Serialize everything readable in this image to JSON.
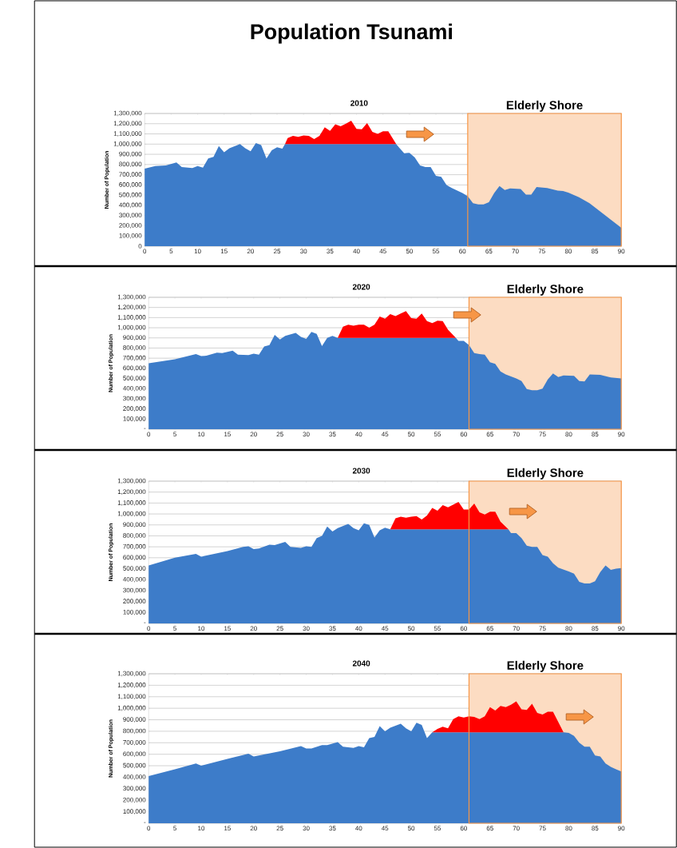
{
  "chart_data": [
    {
      "type": "area",
      "stacked": true,
      "title": "Population Tsunami",
      "subtitle": "2010",
      "ylabel": "Number of Population",
      "grid": "y",
      "x": [
        0,
        2,
        4,
        6,
        7,
        9,
        10,
        11,
        12,
        13,
        14,
        15,
        16,
        18,
        19,
        20,
        21,
        22,
        23,
        24,
        25,
        26,
        26.5,
        27,
        28,
        29,
        30,
        31,
        32,
        33,
        34,
        35,
        36,
        37,
        38,
        39,
        40,
        41,
        42,
        43,
        44,
        45,
        46,
        47.5,
        48,
        49,
        50,
        51,
        52,
        53,
        54,
        55,
        56,
        57,
        58,
        60,
        61,
        62,
        63,
        64,
        65,
        66,
        67,
        68,
        69,
        71,
        72,
        73,
        74,
        76,
        78,
        79,
        80,
        82,
        84,
        86,
        88,
        90
      ],
      "xlim": [
        0,
        90
      ],
      "xticks": [
        0,
        5,
        10,
        15,
        20,
        25,
        30,
        35,
        40,
        45,
        50,
        55,
        60,
        65,
        70,
        75,
        80,
        85,
        90
      ],
      "ylim": [
        0,
        1300000
      ],
      "yticks": [
        0,
        {
          "value": 100000,
          "label": "100,000"
        },
        {
          "value": 200000,
          "label": "200,000"
        },
        {
          "value": 300000,
          "label": "300,000"
        },
        {
          "value": 400000,
          "label": "400,000"
        },
        {
          "value": 500000,
          "label": "500,000"
        },
        {
          "value": 600000,
          "label": "600,000"
        },
        {
          "value": 700000,
          "label": "700,000"
        },
        {
          "value": 800000,
          "label": "800,000"
        },
        {
          "value": 900000,
          "label": "900,000"
        },
        {
          "value": 1000000,
          "label": "1,000,000"
        },
        {
          "value": 1100000,
          "label": "1,100,000"
        },
        {
          "value": 1200000,
          "label": "1,200,000"
        },
        {
          "value": 1300000,
          "label": "1,300,000"
        }
      ],
      "bands": [
        {
          "axis": "x",
          "from": 61,
          "to": 90,
          "label": "Elderly Shore",
          "color": "#fcdcc2"
        }
      ],
      "series": [
        {
          "color": "#3d7cc9",
          "values": [
            760000,
            785000,
            790000,
            820000,
            775000,
            765000,
            785000,
            770000,
            860000,
            875000,
            980000,
            920000,
            960000,
            1000000,
            960000,
            930000,
            1010000,
            990000,
            860000,
            940000,
            970000,
            955000,
            1000000,
            1000000,
            1000000,
            1000000,
            1000000,
            1000000,
            1000000,
            1000000,
            1000000,
            1000000,
            1000000,
            1000000,
            1000000,
            1000000,
            1000000,
            1000000,
            1000000,
            1000000,
            1000000,
            1000000,
            1000000,
            1000000,
            970000,
            910000,
            915000,
            870000,
            790000,
            775000,
            775000,
            690000,
            680000,
            600000,
            570000,
            520000,
            490000,
            420000,
            410000,
            410000,
            430000,
            520000,
            590000,
            550000,
            565000,
            560000,
            505000,
            505000,
            580000,
            570000,
            545000,
            540000,
            525000,
            480000,
            420000,
            340000,
            260000,
            180000
          ]
        },
        {
          "color": "#ff0000",
          "values": [
            null,
            null,
            null,
            null,
            null,
            null,
            null,
            null,
            null,
            null,
            null,
            null,
            null,
            null,
            null,
            null,
            null,
            null,
            null,
            null,
            null,
            null,
            0,
            60000,
            80000,
            70000,
            85000,
            80000,
            50000,
            80000,
            165000,
            130000,
            195000,
            175000,
            200000,
            230000,
            150000,
            145000,
            205000,
            120000,
            100000,
            125000,
            125000,
            0,
            null,
            null,
            null,
            null,
            null,
            null,
            null,
            null,
            null,
            null,
            null,
            null,
            null,
            null,
            null,
            null,
            null,
            null,
            null,
            null,
            null,
            null,
            null,
            null,
            null,
            null,
            null,
            null,
            null,
            null,
            null,
            null,
            null,
            null
          ]
        }
      ]
    },
    {
      "type": "area",
      "stacked": true,
      "subtitle": "2020",
      "ylabel": "Number of Population",
      "grid": "y",
      "x": [
        0,
        5,
        9,
        10,
        11,
        13,
        14,
        16,
        17,
        19,
        20,
        21,
        22,
        23,
        24,
        25,
        26,
        28,
        29,
        30,
        31,
        32,
        33,
        34,
        35,
        36,
        37,
        38,
        39,
        40,
        41,
        42,
        43,
        44,
        45,
        46,
        47,
        48,
        49,
        50,
        51,
        52,
        53,
        54,
        55,
        56,
        57,
        58.5,
        59,
        60,
        61,
        62,
        63,
        64,
        65,
        66,
        67,
        68,
        70,
        71,
        72,
        73,
        74,
        75,
        76,
        77,
        78,
        79,
        81,
        82,
        83,
        84,
        86,
        88,
        90
      ],
      "xlim": [
        0,
        90
      ],
      "xticks": [
        0,
        5,
        10,
        15,
        20,
        25,
        30,
        35,
        40,
        45,
        50,
        55,
        60,
        65,
        70,
        75,
        80,
        85,
        90
      ],
      "ylim": [
        0,
        1300000
      ],
      "yticks": [
        {
          "value": 0,
          "label": "-"
        },
        {
          "value": 100000,
          "label": "100,000"
        },
        {
          "value": 200000,
          "label": "200,000"
        },
        {
          "value": 300000,
          "label": "300,000"
        },
        {
          "value": 400000,
          "label": "400,000"
        },
        {
          "value": 500000,
          "label": "500,000"
        },
        {
          "value": 600000,
          "label": "600,000"
        },
        {
          "value": 700000,
          "label": "700,000"
        },
        {
          "value": 800000,
          "label": "800,000"
        },
        {
          "value": 900000,
          "label": "900,000"
        },
        {
          "value": 1000000,
          "label": "1,000,000"
        },
        {
          "value": 1100000,
          "label": "1,100,000"
        },
        {
          "value": 1200000,
          "label": "1,200,000"
        },
        {
          "value": 1300000,
          "label": "1,300,000"
        }
      ],
      "bands": [
        {
          "axis": "x",
          "from": 61,
          "to": 90,
          "label": "Elderly Shore",
          "color": "#fcdcc2"
        }
      ],
      "series": [
        {
          "color": "#3d7cc9",
          "values": [
            650000,
            690000,
            740000,
            720000,
            725000,
            755000,
            750000,
            775000,
            735000,
            730000,
            745000,
            735000,
            815000,
            830000,
            930000,
            885000,
            920000,
            950000,
            910000,
            890000,
            960000,
            940000,
            820000,
            900000,
            920000,
            900000,
            900000,
            900000,
            900000,
            900000,
            900000,
            900000,
            900000,
            900000,
            900000,
            900000,
            900000,
            900000,
            900000,
            900000,
            900000,
            900000,
            900000,
            900000,
            900000,
            900000,
            900000,
            900000,
            870000,
            870000,
            830000,
            750000,
            740000,
            735000,
            660000,
            645000,
            570000,
            540000,
            500000,
            475000,
            395000,
            385000,
            385000,
            400000,
            490000,
            550000,
            515000,
            530000,
            525000,
            475000,
            470000,
            540000,
            535000,
            510000,
            500000
          ]
        },
        {
          "color": "#ff0000",
          "values": [
            null,
            null,
            null,
            null,
            null,
            null,
            null,
            null,
            null,
            null,
            null,
            null,
            null,
            null,
            null,
            null,
            null,
            null,
            null,
            null,
            null,
            null,
            null,
            null,
            null,
            0,
            110000,
            130000,
            120000,
            130000,
            130000,
            100000,
            130000,
            210000,
            190000,
            235000,
            215000,
            240000,
            265000,
            195000,
            190000,
            240000,
            165000,
            145000,
            170000,
            165000,
            80000,
            0,
            null,
            null,
            null,
            null,
            null,
            null,
            null,
            null,
            null,
            null,
            null,
            null,
            null,
            null,
            null,
            null,
            null,
            null,
            null,
            null,
            null,
            null,
            null,
            null,
            null,
            null,
            null
          ]
        }
      ]
    },
    {
      "type": "area",
      "stacked": true,
      "subtitle": "2030",
      "ylabel": "Number of Population",
      "grid": "y",
      "x": [
        0,
        5,
        9,
        10,
        15,
        18,
        19,
        20,
        21,
        23,
        24,
        26,
        27,
        29,
        30,
        31,
        32,
        33,
        34,
        35,
        36,
        38,
        39,
        40,
        41,
        42,
        43,
        44,
        45,
        46,
        47,
        48,
        49,
        50,
        51,
        52,
        53,
        54,
        55,
        56,
        57,
        58,
        59,
        60,
        61,
        62,
        63,
        64,
        65,
        66,
        67,
        68.5,
        69,
        70,
        71,
        72,
        73,
        74,
        75,
        76,
        77,
        78,
        80,
        81,
        82,
        83,
        84,
        85,
        86,
        87,
        88,
        89,
        90
      ],
      "xlim": [
        0,
        90
      ],
      "xticks": [
        0,
        5,
        10,
        15,
        20,
        25,
        30,
        35,
        40,
        45,
        50,
        55,
        60,
        65,
        70,
        75,
        80,
        85,
        90
      ],
      "ylim": [
        0,
        1300000
      ],
      "yticks": [
        {
          "value": 0,
          "label": "-"
        },
        {
          "value": 100000,
          "label": "100,000"
        },
        {
          "value": 200000,
          "label": "200,000"
        },
        {
          "value": 300000,
          "label": "300,000"
        },
        {
          "value": 400000,
          "label": "400,000"
        },
        {
          "value": 500000,
          "label": "500,000"
        },
        {
          "value": 600000,
          "label": "600,000"
        },
        {
          "value": 700000,
          "label": "700,000"
        },
        {
          "value": 800000,
          "label": "800,000"
        },
        {
          "value": 900000,
          "label": "900,000"
        },
        {
          "value": 1000000,
          "label": "1,000,000"
        },
        {
          "value": 1100000,
          "label": "1,100,000"
        },
        {
          "value": 1200000,
          "label": "1,200,000"
        },
        {
          "value": 1300000,
          "label": "1,300,000"
        }
      ],
      "bands": [
        {
          "axis": "x",
          "from": 61,
          "to": 90,
          "label": "Elderly Shore",
          "color": "#fcdcc2"
        }
      ],
      "series": [
        {
          "color": "#3d7cc9",
          "values": [
            530000,
            600000,
            635000,
            610000,
            660000,
            700000,
            705000,
            680000,
            685000,
            720000,
            715000,
            745000,
            700000,
            690000,
            705000,
            700000,
            780000,
            800000,
            885000,
            840000,
            870000,
            910000,
            870000,
            850000,
            915000,
            900000,
            785000,
            850000,
            875000,
            860000,
            860000,
            860000,
            860000,
            860000,
            860000,
            860000,
            860000,
            860000,
            860000,
            860000,
            860000,
            860000,
            860000,
            860000,
            860000,
            860000,
            860000,
            860000,
            860000,
            860000,
            860000,
            860000,
            825000,
            825000,
            780000,
            710000,
            700000,
            700000,
            625000,
            610000,
            550000,
            510000,
            475000,
            455000,
            380000,
            365000,
            365000,
            385000,
            470000,
            530000,
            490000,
            500000,
            505000
          ]
        },
        {
          "color": "#ff0000",
          "values": [
            null,
            null,
            null,
            null,
            null,
            null,
            null,
            null,
            null,
            null,
            null,
            null,
            null,
            null,
            null,
            null,
            null,
            null,
            null,
            null,
            null,
            null,
            null,
            null,
            null,
            null,
            null,
            null,
            null,
            0,
            100000,
            115000,
            105000,
            115000,
            120000,
            90000,
            125000,
            195000,
            170000,
            220000,
            200000,
            225000,
            250000,
            180000,
            180000,
            235000,
            155000,
            135000,
            160000,
            160000,
            70000,
            0,
            null,
            null,
            null,
            null,
            null,
            null,
            null,
            null,
            null,
            null,
            null,
            null,
            null,
            null,
            null,
            null,
            null,
            null,
            null,
            null,
            null
          ]
        }
      ]
    },
    {
      "type": "area",
      "stacked": true,
      "subtitle": "2040",
      "ylabel": "Number of Population",
      "grid": "y",
      "x": [
        0,
        5,
        9,
        10,
        15,
        19,
        20,
        25,
        29,
        30,
        31,
        33,
        34,
        36,
        37,
        39,
        40,
        41,
        42,
        43,
        44,
        45,
        46,
        48,
        49,
        50,
        51,
        52,
        53,
        54,
        55,
        56,
        57,
        58,
        59,
        60,
        61,
        62,
        63,
        64,
        65,
        66,
        67,
        68,
        69,
        70,
        71,
        72,
        73,
        74,
        75,
        76,
        77,
        78,
        79,
        80,
        81,
        82,
        83,
        84,
        85,
        86,
        87,
        88,
        89,
        90
      ],
      "xlim": [
        0,
        90
      ],
      "xticks": [
        0,
        5,
        10,
        15,
        20,
        25,
        30,
        35,
        40,
        45,
        50,
        55,
        60,
        65,
        70,
        75,
        80,
        85,
        90
      ],
      "ylim": [
        0,
        1300000
      ],
      "yticks": [
        {
          "value": 0,
          "label": "-"
        },
        {
          "value": 100000,
          "label": "100,000"
        },
        {
          "value": 200000,
          "label": "200,000"
        },
        {
          "value": 300000,
          "label": "300,000"
        },
        {
          "value": 400000,
          "label": "400,000"
        },
        {
          "value": 500000,
          "label": "500,000"
        },
        {
          "value": 600000,
          "label": "600,000"
        },
        {
          "value": 700000,
          "label": "700,000"
        },
        {
          "value": 800000,
          "label": "800,000"
        },
        {
          "value": 900000,
          "label": "900,000"
        },
        {
          "value": 1000000,
          "label": "1,000,000"
        },
        {
          "value": 1100000,
          "label": "1,100,000"
        },
        {
          "value": 1200000,
          "label": "1,200,000"
        },
        {
          "value": 1300000,
          "label": "1,300,000"
        }
      ],
      "bands": [
        {
          "axis": "x",
          "from": 61,
          "to": 90,
          "label": "Elderly Shore",
          "color": "#fcdcc2"
        }
      ],
      "series": [
        {
          "color": "#3d7cc9",
          "values": [
            410000,
            470000,
            520000,
            500000,
            560000,
            605000,
            580000,
            625000,
            670000,
            650000,
            650000,
            680000,
            680000,
            705000,
            665000,
            655000,
            670000,
            660000,
            740000,
            750000,
            845000,
            800000,
            830000,
            865000,
            825000,
            800000,
            875000,
            855000,
            740000,
            790000,
            790000,
            790000,
            790000,
            790000,
            790000,
            790000,
            790000,
            790000,
            790000,
            790000,
            790000,
            790000,
            790000,
            790000,
            790000,
            790000,
            790000,
            790000,
            790000,
            790000,
            790000,
            790000,
            790000,
            790000,
            790000,
            785000,
            760000,
            700000,
            665000,
            665000,
            590000,
            580000,
            520000,
            490000,
            470000,
            450000
          ]
        },
        {
          "color": "#ff0000",
          "values": [
            null,
            null,
            null,
            null,
            null,
            null,
            null,
            null,
            null,
            null,
            null,
            null,
            null,
            null,
            null,
            null,
            null,
            null,
            null,
            null,
            null,
            null,
            null,
            null,
            null,
            null,
            null,
            null,
            null,
            0,
            30000,
            50000,
            35000,
            115000,
            140000,
            130000,
            140000,
            135000,
            115000,
            140000,
            220000,
            190000,
            230000,
            220000,
            240000,
            270000,
            200000,
            195000,
            250000,
            170000,
            155000,
            180000,
            180000,
            90000,
            0,
            null,
            null,
            null,
            null,
            null,
            null,
            null,
            null,
            null,
            null,
            null
          ]
        }
      ]
    }
  ]
}
